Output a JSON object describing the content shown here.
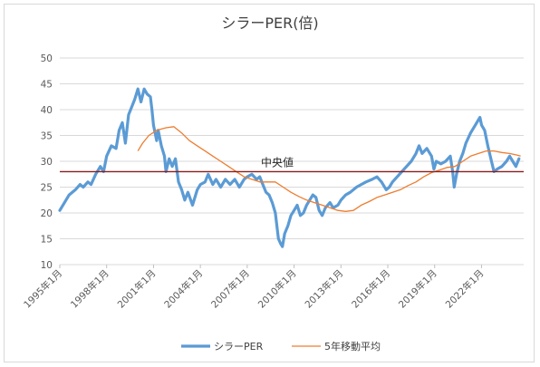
{
  "chart_data": {
    "type": "line",
    "title": "シラーPER(倍)",
    "xlabel": "",
    "ylabel": "",
    "ylim": [
      10,
      50
    ],
    "yticks": [
      10,
      15,
      20,
      25,
      30,
      35,
      40,
      45,
      50
    ],
    "xlim": [
      1995.0,
      2024.7
    ],
    "xtick_labels": [
      "1995年1月",
      "1998年1月",
      "2001年1月",
      "2004年1月",
      "2007年1月",
      "2010年1月",
      "2013年1月",
      "2016年1月",
      "2019年1月",
      "2022年1月"
    ],
    "grid": "horizontal",
    "legend": "bottom",
    "reference_line": {
      "label": "中央値",
      "value": 28.0,
      "color": "#8b1a1a"
    },
    "series": [
      {
        "name": "シラーPER",
        "color": "#5b9bd5",
        "points": [
          [
            1995.0,
            20.5
          ],
          [
            1995.3,
            22.0
          ],
          [
            1995.6,
            23.5
          ],
          [
            1996.0,
            24.5
          ],
          [
            1996.3,
            25.5
          ],
          [
            1996.5,
            25.0
          ],
          [
            1996.8,
            26.0
          ],
          [
            1997.0,
            25.5
          ],
          [
            1997.3,
            27.5
          ],
          [
            1997.6,
            29.0
          ],
          [
            1997.8,
            28.0
          ],
          [
            1998.0,
            31.0
          ],
          [
            1998.3,
            33.0
          ],
          [
            1998.6,
            32.5
          ],
          [
            1998.8,
            36.0
          ],
          [
            1999.0,
            37.5
          ],
          [
            1999.2,
            33.5
          ],
          [
            1999.4,
            39.0
          ],
          [
            1999.6,
            40.5
          ],
          [
            1999.8,
            42.0
          ],
          [
            2000.0,
            44.0
          ],
          [
            2000.2,
            41.5
          ],
          [
            2000.4,
            44.0
          ],
          [
            2000.6,
            43.0
          ],
          [
            2000.8,
            42.5
          ],
          [
            2000.9,
            40.0
          ],
          [
            2001.0,
            37.0
          ],
          [
            2001.2,
            34.0
          ],
          [
            2001.3,
            36.0
          ],
          [
            2001.5,
            33.0
          ],
          [
            2001.7,
            31.0
          ],
          [
            2001.8,
            28.0
          ],
          [
            2002.0,
            30.5
          ],
          [
            2002.2,
            29.0
          ],
          [
            2002.4,
            30.5
          ],
          [
            2002.6,
            26.0
          ],
          [
            2002.8,
            24.5
          ],
          [
            2003.0,
            22.5
          ],
          [
            2003.2,
            24.0
          ],
          [
            2003.5,
            21.5
          ],
          [
            2003.8,
            24.5
          ],
          [
            2004.0,
            25.5
          ],
          [
            2004.3,
            26.0
          ],
          [
            2004.5,
            27.5
          ],
          [
            2004.8,
            25.5
          ],
          [
            2005.0,
            26.5
          ],
          [
            2005.3,
            25.0
          ],
          [
            2005.6,
            26.5
          ],
          [
            2005.9,
            25.5
          ],
          [
            2006.2,
            26.5
          ],
          [
            2006.5,
            25.0
          ],
          [
            2006.8,
            26.5
          ],
          [
            2007.0,
            27.0
          ],
          [
            2007.3,
            27.5
          ],
          [
            2007.6,
            26.5
          ],
          [
            2007.8,
            27.0
          ],
          [
            2008.0,
            25.5
          ],
          [
            2008.2,
            24.0
          ],
          [
            2008.4,
            23.5
          ],
          [
            2008.6,
            22.0
          ],
          [
            2008.8,
            20.0
          ],
          [
            2009.0,
            15.0
          ],
          [
            2009.15,
            14.0
          ],
          [
            2009.25,
            13.5
          ],
          [
            2009.4,
            16.0
          ],
          [
            2009.6,
            17.5
          ],
          [
            2009.8,
            19.5
          ],
          [
            2010.0,
            20.5
          ],
          [
            2010.2,
            21.5
          ],
          [
            2010.4,
            19.5
          ],
          [
            2010.6,
            20.0
          ],
          [
            2010.8,
            21.5
          ],
          [
            2011.0,
            22.5
          ],
          [
            2011.2,
            23.5
          ],
          [
            2011.4,
            23.0
          ],
          [
            2011.6,
            20.5
          ],
          [
            2011.8,
            19.5
          ],
          [
            2012.0,
            21.0
          ],
          [
            2012.3,
            22.0
          ],
          [
            2012.5,
            21.0
          ],
          [
            2012.8,
            21.5
          ],
          [
            2013.0,
            22.5
          ],
          [
            2013.3,
            23.5
          ],
          [
            2013.6,
            24.0
          ],
          [
            2014.0,
            25.0
          ],
          [
            2014.3,
            25.5
          ],
          [
            2014.6,
            26.0
          ],
          [
            2015.0,
            26.5
          ],
          [
            2015.3,
            27.0
          ],
          [
            2015.6,
            26.0
          ],
          [
            2015.9,
            24.5
          ],
          [
            2016.1,
            25.0
          ],
          [
            2016.3,
            26.0
          ],
          [
            2016.6,
            27.0
          ],
          [
            2016.9,
            28.0
          ],
          [
            2017.2,
            29.0
          ],
          [
            2017.5,
            30.0
          ],
          [
            2017.8,
            31.5
          ],
          [
            2018.0,
            33.0
          ],
          [
            2018.2,
            31.5
          ],
          [
            2018.5,
            32.5
          ],
          [
            2018.8,
            31.0
          ],
          [
            2018.95,
            28.5
          ],
          [
            2019.1,
            30.0
          ],
          [
            2019.4,
            29.5
          ],
          [
            2019.7,
            30.0
          ],
          [
            2020.0,
            31.0
          ],
          [
            2020.15,
            28.0
          ],
          [
            2020.25,
            25.0
          ],
          [
            2020.4,
            27.5
          ],
          [
            2020.6,
            30.0
          ],
          [
            2020.8,
            31.5
          ],
          [
            2021.0,
            33.5
          ],
          [
            2021.3,
            35.5
          ],
          [
            2021.6,
            37.0
          ],
          [
            2021.9,
            38.5
          ],
          [
            2022.0,
            37.0
          ],
          [
            2022.2,
            36.0
          ],
          [
            2022.4,
            33.0
          ],
          [
            2022.6,
            30.5
          ],
          [
            2022.8,
            28.0
          ],
          [
            2023.0,
            28.5
          ],
          [
            2023.3,
            29.0
          ],
          [
            2023.6,
            30.0
          ],
          [
            2023.8,
            31.0
          ],
          [
            2024.0,
            30.0
          ],
          [
            2024.2,
            29.0
          ],
          [
            2024.4,
            30.5
          ]
        ]
      },
      {
        "name": "5年移動平均",
        "color": "#ed7d31",
        "points": [
          [
            2000.0,
            32.0
          ],
          [
            2000.3,
            33.5
          ],
          [
            2000.7,
            35.0
          ],
          [
            2001.2,
            36.0
          ],
          [
            2001.8,
            36.5
          ],
          [
            2002.3,
            36.7
          ],
          [
            2002.8,
            35.5
          ],
          [
            2003.3,
            34.0
          ],
          [
            2003.8,
            33.0
          ],
          [
            2004.3,
            32.0
          ],
          [
            2004.8,
            31.0
          ],
          [
            2005.3,
            30.0
          ],
          [
            2005.8,
            29.0
          ],
          [
            2006.3,
            28.0
          ],
          [
            2006.8,
            27.0
          ],
          [
            2007.3,
            26.5
          ],
          [
            2007.8,
            26.0
          ],
          [
            2008.3,
            26.0
          ],
          [
            2008.8,
            26.0
          ],
          [
            2009.3,
            25.0
          ],
          [
            2009.8,
            24.0
          ],
          [
            2010.3,
            23.2
          ],
          [
            2010.8,
            22.5
          ],
          [
            2011.3,
            22.0
          ],
          [
            2011.8,
            21.5
          ],
          [
            2012.3,
            21.0
          ],
          [
            2012.8,
            20.5
          ],
          [
            2013.3,
            20.3
          ],
          [
            2013.8,
            20.5
          ],
          [
            2014.3,
            21.5
          ],
          [
            2014.8,
            22.2
          ],
          [
            2015.3,
            23.0
          ],
          [
            2015.8,
            23.5
          ],
          [
            2016.3,
            24.0
          ],
          [
            2016.8,
            24.5
          ],
          [
            2017.3,
            25.3
          ],
          [
            2017.8,
            26.0
          ],
          [
            2018.3,
            27.0
          ],
          [
            2018.8,
            27.8
          ],
          [
            2019.3,
            28.3
          ],
          [
            2019.8,
            28.8
          ],
          [
            2020.3,
            29.0
          ],
          [
            2020.8,
            30.0
          ],
          [
            2021.3,
            31.0
          ],
          [
            2021.8,
            31.5
          ],
          [
            2022.3,
            32.0
          ],
          [
            2022.8,
            32.0
          ],
          [
            2023.3,
            31.7
          ],
          [
            2023.8,
            31.5
          ],
          [
            2024.3,
            31.2
          ],
          [
            2024.5,
            31.0
          ]
        ]
      }
    ]
  }
}
